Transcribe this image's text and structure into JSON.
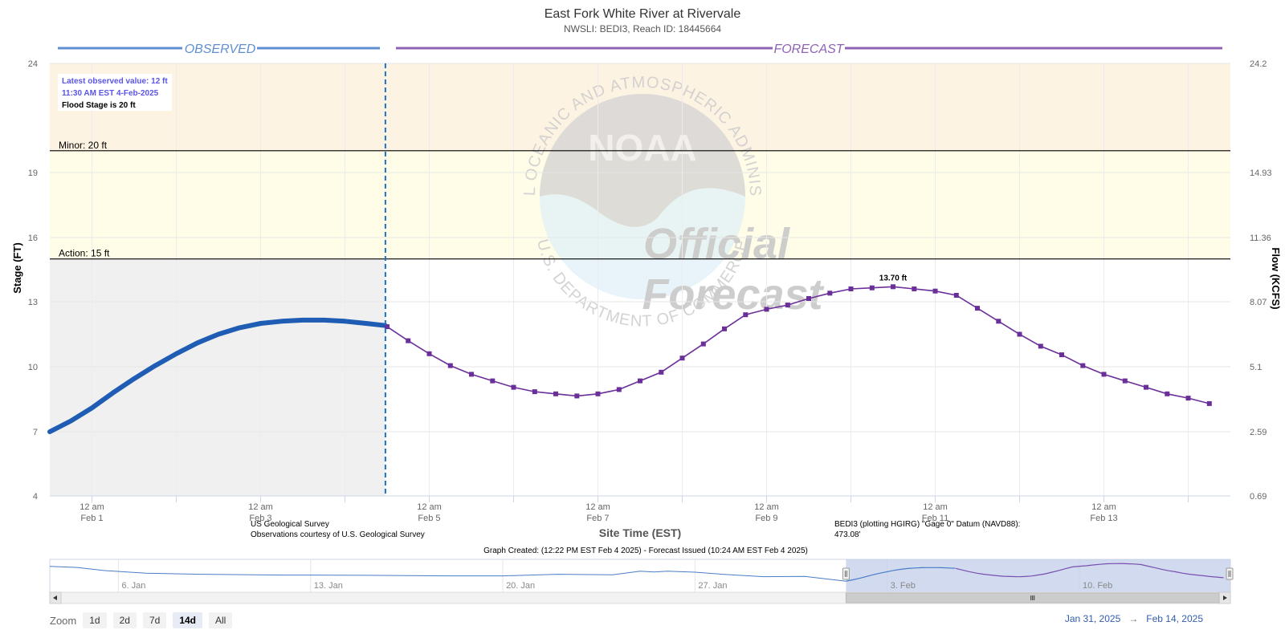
{
  "chart_data": {
    "type": "line",
    "title": "East Fork White River at Rivervale",
    "subtitle": "NWSLI: BEDI3, Reach ID: 18445664",
    "xlabel": "Site Time (EST)",
    "ylabel": "Stage (FT)",
    "y2label": "Flow (KCFS)",
    "y_ticks": [
      "24",
      "19",
      "16",
      "13",
      "10",
      "7",
      "4"
    ],
    "y_tick_values": [
      24,
      19,
      16,
      13,
      10,
      7,
      4
    ],
    "y2_ticks": [
      "24.2",
      "14.93",
      "11.36",
      "8.07",
      "5.1",
      "2.59",
      "0.69"
    ],
    "x_ticks": [
      {
        "time": "12 am",
        "date": "Feb 1",
        "day": 1
      },
      {
        "time": "12 am",
        "date": "Feb 3",
        "day": 3
      },
      {
        "time": "12 am",
        "date": "Feb 5",
        "day": 5
      },
      {
        "time": "12 am",
        "date": "Feb 7",
        "day": 7
      },
      {
        "time": "12 am",
        "date": "Feb 9",
        "day": 9
      },
      {
        "time": "12 am",
        "date": "Feb 11",
        "day": 11
      },
      {
        "time": "12 am",
        "date": "Feb 13",
        "day": 13
      }
    ],
    "x_range_days": [
      0.5,
      14.5
    ],
    "thresholds": [
      {
        "label": "Minor: 20 ft",
        "value": 20,
        "color": "#fff9dc"
      },
      {
        "label": "Action: 15 ft",
        "value": 15,
        "color": "#ffffff"
      }
    ],
    "band_colors": {
      "above_minor": "#fdf3e2",
      "minor_to_action": "#fffde8",
      "observed_bg": "#f0f0f0"
    },
    "observed_label": "OBSERVED",
    "forecast_label": "FORECAST",
    "now_day": 4.48,
    "series": [
      {
        "name": "Observed",
        "color": "#1f5cb3",
        "x": [
          0.5,
          0.75,
          1.0,
          1.25,
          1.5,
          1.75,
          2.0,
          2.25,
          2.5,
          2.75,
          3.0,
          3.25,
          3.5,
          3.75,
          4.0,
          4.25,
          4.48
        ],
        "y": [
          7.0,
          7.5,
          8.1,
          8.8,
          9.45,
          10.05,
          10.6,
          11.1,
          11.5,
          11.8,
          12.0,
          12.1,
          12.15,
          12.15,
          12.1,
          12.0,
          11.9
        ]
      },
      {
        "name": "Forecast",
        "color": "#6b2f9a",
        "x": [
          4.5,
          4.75,
          5.0,
          5.25,
          5.5,
          5.75,
          6.0,
          6.25,
          6.5,
          6.75,
          7.0,
          7.25,
          7.5,
          7.75,
          8.0,
          8.25,
          8.5,
          8.75,
          9.0,
          9.25,
          9.5,
          9.75,
          10.0,
          10.25,
          10.5,
          10.75,
          11.0,
          11.25,
          11.5,
          11.75,
          12.0,
          12.25,
          12.5,
          12.75,
          13.0,
          13.25,
          13.5,
          13.75,
          14.0,
          14.25
        ],
        "y": [
          11.85,
          11.2,
          10.6,
          10.05,
          9.65,
          9.35,
          9.05,
          8.85,
          8.75,
          8.65,
          8.75,
          8.95,
          9.35,
          9.75,
          10.4,
          11.05,
          11.75,
          12.4,
          12.65,
          12.85,
          13.15,
          13.4,
          13.6,
          13.65,
          13.7,
          13.6,
          13.5,
          13.3,
          12.7,
          12.1,
          11.5,
          10.95,
          10.55,
          10.05,
          9.65,
          9.35,
          9.05,
          8.75,
          8.55,
          8.3
        ]
      }
    ],
    "peak_label": "13.70 ft",
    "peak_day": 10.5,
    "peak_value": 13.7
  },
  "info_box": {
    "latest": "Latest observed value: 12 ft",
    "time": "11:30 AM EST 4-Feb-2025",
    "flood_stage": "Flood Stage is 20 ft"
  },
  "watermark": {
    "ring_top": "NATIONAL OCEANIC AND ATMOSPHERIC ADMINISTRATION",
    "ring_bottom": "U.S. DEPARTMENT OF COMMERCE",
    "logo_text": "NOAA",
    "stamp_line1": "Official",
    "stamp_line2": "Forecast"
  },
  "credits": {
    "usgs_line1": "US Geological Survey",
    "usgs_line2": "Observations courtesy of U.S. Geological Survey",
    "datum_line1": "BEDI3 (plotting HGIRG) \"Gage 0\" Datum (NAVD88):",
    "datum_line2": "473.08'",
    "graph_created": "Graph Created: (12:22 PM EST Feb 4 2025) - Forecast Issued (10:24 AM EST Feb 4 2025)"
  },
  "navigator": {
    "labels": [
      {
        "text": "6. Jan",
        "day": -26
      },
      {
        "text": "13. Jan",
        "day": -19
      },
      {
        "text": "20. Jan",
        "day": -12
      },
      {
        "text": "27. Jan",
        "day": -5
      },
      {
        "text": "3. Feb",
        "day": 2
      },
      {
        "text": "10. Feb",
        "day": 9
      }
    ],
    "range_days": [
      -28.5,
      14.5
    ],
    "selected_days": [
      0.5,
      14.5
    ],
    "history_x": [
      -28.5,
      -27.5,
      -26.5,
      -25,
      -23,
      -20,
      -17,
      -14,
      -12,
      -10,
      -8,
      -7,
      -6.5,
      -6,
      -5,
      -4,
      -2.5,
      -1,
      0.5
    ],
    "history_y": [
      12.6,
      12.2,
      11.0,
      10.0,
      9.6,
      9.3,
      9.2,
      9.0,
      9.0,
      9.6,
      9.4,
      10.8,
      10.5,
      10.8,
      10.4,
      9.6,
      8.7,
      8.8,
      7.0
    ]
  },
  "zoom": {
    "label": "Zoom",
    "buttons": [
      "1d",
      "2d",
      "7d",
      "14d",
      "All"
    ],
    "active": "14d"
  },
  "range_from": "Jan 31, 2025",
  "range_to": "Feb 14, 2025"
}
